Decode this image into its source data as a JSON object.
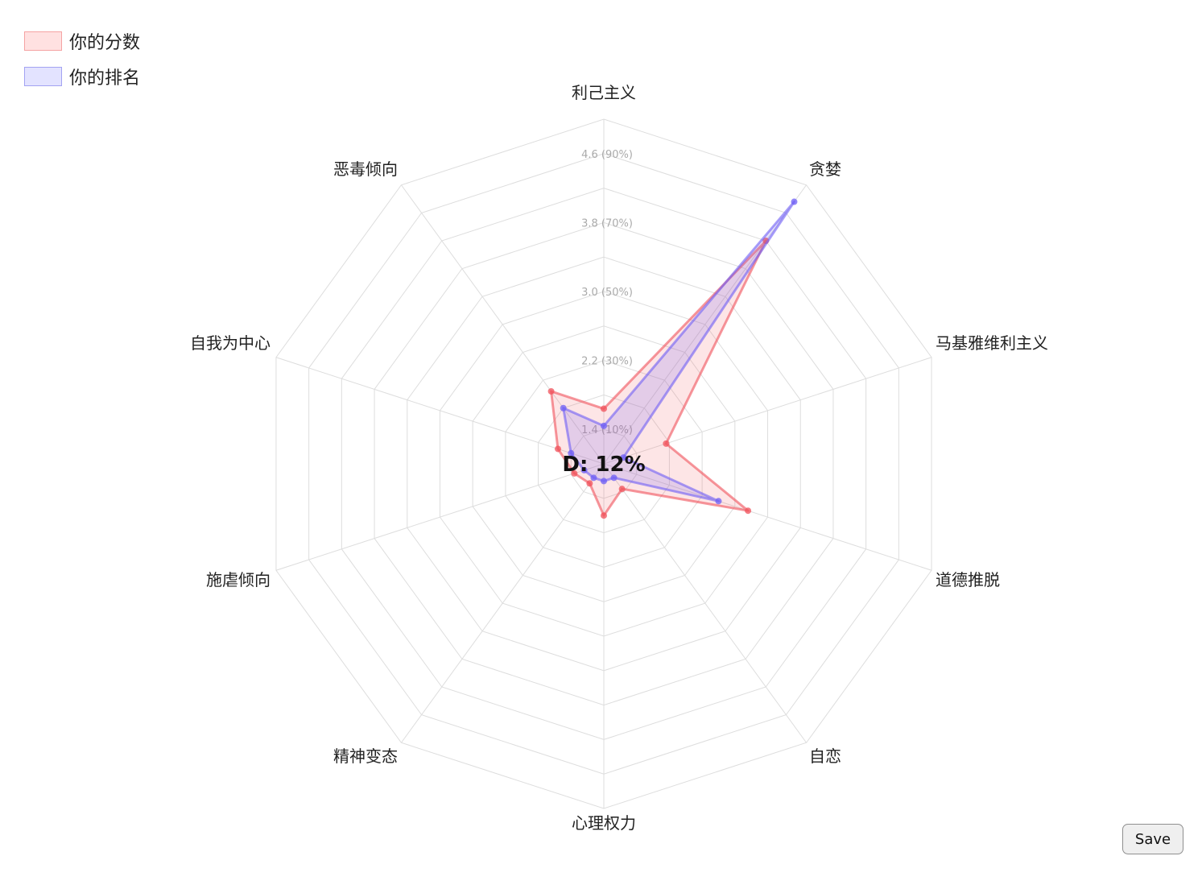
{
  "legend": [
    {
      "label": "你的分数",
      "fill": "#ffe1e1",
      "stroke": "#f5a3a3"
    },
    {
      "label": "你的排名",
      "fill": "#e3e3ff",
      "stroke": "#a3a3f2"
    }
  ],
  "center_label": "D: 12%",
  "save_label": "Save",
  "colors": {
    "score": "#f0505a",
    "rank": "#6e5ef5",
    "grid": "#dddddd",
    "tick_text": "#aaaaaa"
  },
  "chart_data": {
    "type": "radar",
    "axes": [
      "利己主义",
      "贪婪",
      "马基雅维利主义",
      "道德推脱",
      "自恋",
      "心理权力",
      "精神变态",
      "施虐倾向",
      "自我为中心",
      "恶毒倾向"
    ],
    "rings": 10,
    "tick_labels": [
      {
        "ring": 1,
        "text": "1.4  (10%)"
      },
      {
        "ring": 3,
        "text": "2.2  (30%)"
      },
      {
        "ring": 5,
        "text": "3.0  (50%)"
      },
      {
        "ring": 7,
        "text": "3.8  (70%)"
      },
      {
        "ring": 9,
        "text": "4.6  (90%)"
      }
    ],
    "series": [
      {
        "name": "你的分数",
        "values": [
          0.16,
          0.8,
          0.19,
          0.44,
          0.09,
          0.15,
          0.07,
          0.09,
          0.14,
          0.26
        ]
      },
      {
        "name": "你的排名",
        "values": [
          0.11,
          0.94,
          0.06,
          0.35,
          0.05,
          0.05,
          0.05,
          0.06,
          0.1,
          0.2
        ]
      }
    ]
  }
}
